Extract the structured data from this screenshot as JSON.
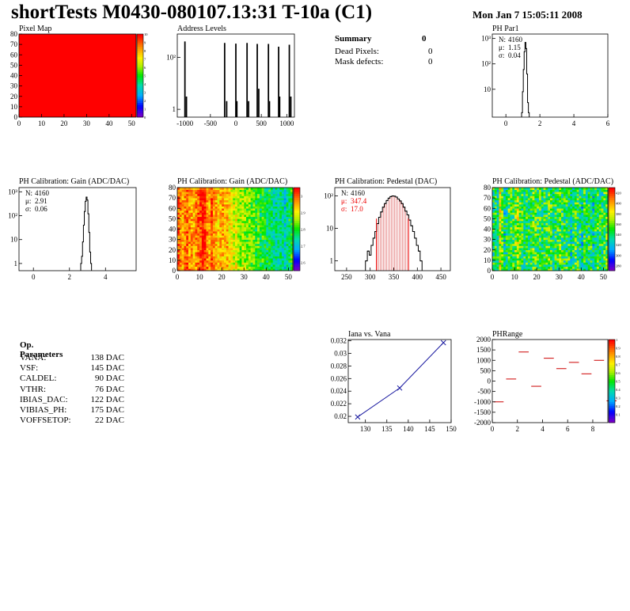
{
  "title": "shortTests M0430-080107.13:31 T-10a (C1)",
  "date": "Mon Jan  7 15:05:11 2008",
  "summary": {
    "heading": "Summary",
    "heading_value": "0",
    "rows": [
      {
        "label": "Dead Pixels:",
        "value": "0"
      },
      {
        "label": "Mask defects:",
        "value": "0"
      }
    ]
  },
  "op_params": {
    "heading": "Op. Parameters",
    "rows": [
      {
        "label": "VANA:",
        "value": "138 DAC"
      },
      {
        "label": "VSF:",
        "value": "145 DAC"
      },
      {
        "label": "CALDEL:",
        "value": "90 DAC"
      },
      {
        "label": "VTHR:",
        "value": "76 DAC"
      },
      {
        "label": "IBIAS_DAC:",
        "value": "122 DAC"
      },
      {
        "label": "VIBIAS_PH:",
        "value": "175 DAC"
      },
      {
        "label": "VOFFSETOP:",
        "value": "22 DAC"
      }
    ]
  },
  "chart_data": [
    {
      "id": "pixel-map",
      "type": "heatmap",
      "title": "Pixel Map",
      "xlim": [
        0,
        52
      ],
      "ylim": [
        0,
        80
      ],
      "xticks": [
        0,
        10,
        20,
        30,
        40,
        50
      ],
      "yticks": [
        0,
        10,
        20,
        30,
        40,
        50,
        60,
        70,
        80
      ],
      "zlim": [
        0,
        10
      ],
      "zticks": [
        0,
        1,
        2,
        3,
        4,
        5,
        6,
        7,
        8,
        9,
        10
      ],
      "uniform_value": 10
    },
    {
      "id": "address-levels",
      "type": "bar",
      "title": "Address Levels",
      "xlim": [
        -1150,
        1150
      ],
      "ylog": true,
      "ylim": [
        0.5,
        800
      ],
      "xticks": [
        -1000,
        -500,
        0,
        500,
        1000
      ],
      "yticks": [
        {
          "v": 1,
          "label": "1"
        },
        {
          "v": 100,
          "label": "10²"
        }
      ],
      "peaks": [
        {
          "x": -1000,
          "y": 400
        },
        {
          "x": -970,
          "y": 3
        },
        {
          "x": -220,
          "y": 350
        },
        {
          "x": -180,
          "y": 2
        },
        {
          "x": 0,
          "y": 330
        },
        {
          "x": 20,
          "y": 2
        },
        {
          "x": 220,
          "y": 350
        },
        {
          "x": 250,
          "y": 2
        },
        {
          "x": 420,
          "y": 320
        },
        {
          "x": 450,
          "y": 6
        },
        {
          "x": 640,
          "y": 320
        },
        {
          "x": 660,
          "y": 2
        },
        {
          "x": 840,
          "y": 250
        },
        {
          "x": 860,
          "y": 3
        },
        {
          "x": 1050,
          "y": 300
        },
        {
          "x": 1080,
          "y": 3
        }
      ]
    },
    {
      "id": "ph-par1",
      "type": "bar",
      "title": "PH Par1",
      "xlim": [
        -0.8,
        6
      ],
      "ylog": true,
      "ylim": [
        0.8,
        1500
      ],
      "xticks": [
        0,
        2,
        4,
        6
      ],
      "yticks": [
        {
          "v": 10,
          "label": "10"
        },
        {
          "v": 100,
          "label": "10²"
        },
        {
          "v": 1000,
          "label": "10³"
        }
      ],
      "stats": [
        {
          "k": "N:",
          "v": "4160"
        },
        {
          "k": "μ:",
          "v": "1.15"
        },
        {
          "k": "σ:",
          "v": "0.04"
        }
      ],
      "bins": [
        [
          0.95,
          1.2
        ],
        [
          1.0,
          8
        ],
        [
          1.05,
          60
        ],
        [
          1.1,
          300
        ],
        [
          1.15,
          700
        ],
        [
          1.2,
          400
        ],
        [
          1.25,
          40
        ],
        [
          1.3,
          3
        ],
        [
          1.35,
          1.2
        ]
      ]
    },
    {
      "id": "ph-gain-hist",
      "type": "bar",
      "title": "PH Calibration: Gain (ADC/DAC)",
      "xlim": [
        -0.8,
        5.7
      ],
      "ylog": true,
      "ylim": [
        0.5,
        1500
      ],
      "xticks": [
        0,
        2,
        4
      ],
      "yticks": [
        {
          "v": 1,
          "label": "1"
        },
        {
          "v": 10,
          "label": "10"
        },
        {
          "v": 100,
          "label": "10²"
        },
        {
          "v": 1000,
          "label": "10³"
        }
      ],
      "stats": [
        {
          "k": "N:",
          "v": "4160"
        },
        {
          "k": "μ:",
          "v": "2.91"
        },
        {
          "k": "σ:",
          "v": "0.06"
        }
      ],
      "bins": [
        [
          2.65,
          1
        ],
        [
          2.7,
          2
        ],
        [
          2.75,
          8
        ],
        [
          2.8,
          40
        ],
        [
          2.85,
          150
        ],
        [
          2.9,
          400
        ],
        [
          2.95,
          600
        ],
        [
          3.0,
          450
        ],
        [
          3.05,
          120
        ],
        [
          3.1,
          20
        ],
        [
          3.15,
          3
        ],
        [
          3.2,
          1
        ]
      ]
    },
    {
      "id": "ph-gain-map",
      "type": "heatmap",
      "title": "PH Calibration: Gain (ADC/DAC)",
      "xlim": [
        0,
        52
      ],
      "ylim": [
        0,
        80
      ],
      "xticks": [
        0,
        10,
        20,
        30,
        40,
        50
      ],
      "yticks": [
        0,
        10,
        20,
        30,
        40,
        50,
        60,
        70,
        80
      ],
      "zlim": [
        2.55,
        3.05
      ],
      "zticks": [
        2.6,
        2.7,
        2.8,
        2.9,
        3
      ],
      "column_means": [
        3.0,
        2.98,
        2.95,
        2.98,
        3.0,
        2.97,
        2.96,
        2.95,
        2.97,
        3.0,
        3.02,
        3.05,
        3.03,
        2.98,
        2.95,
        3.02,
        2.98,
        2.95,
        2.93,
        2.95,
        2.96,
        2.93,
        2.95,
        2.92,
        2.9,
        2.88,
        2.9,
        2.86,
        2.85,
        2.87,
        2.84,
        2.83,
        2.85,
        2.82,
        2.83,
        2.8,
        2.82,
        2.78,
        2.8,
        2.79,
        2.77,
        2.78,
        2.76,
        2.74,
        2.75,
        2.73,
        2.76,
        2.74,
        2.72,
        2.75,
        2.78,
        2.8
      ]
    },
    {
      "id": "ph-pedestal-hist",
      "type": "bar",
      "title": "PH Calibration: Pedestal (DAC)",
      "xlim": [
        225,
        470
      ],
      "ylog": true,
      "ylim": [
        0.5,
        180
      ],
      "xticks": [
        250,
        300,
        350,
        400,
        450
      ],
      "yticks": [
        {
          "v": 1,
          "label": "1"
        },
        {
          "v": 10,
          "label": "10"
        },
        {
          "v": 100,
          "label": "10²"
        }
      ],
      "stats": [
        {
          "k": "N:",
          "v": "4160"
        },
        {
          "k": "μ:",
          "v": "347.4"
        },
        {
          "k": "σ:",
          "v": "17.0"
        }
      ],
      "mean": 347.4,
      "sigma": 17.0,
      "band": [
        313.4,
        381.4
      ],
      "bins": [
        [
          292,
          1
        ],
        [
          296,
          2
        ],
        [
          300,
          1.5
        ],
        [
          304,
          3
        ],
        [
          308,
          5
        ],
        [
          312,
          8
        ],
        [
          316,
          14
        ],
        [
          320,
          22
        ],
        [
          324,
          32
        ],
        [
          328,
          45
        ],
        [
          332,
          58
        ],
        [
          336,
          72
        ],
        [
          340,
          85
        ],
        [
          344,
          95
        ],
        [
          348,
          100
        ],
        [
          352,
          98
        ],
        [
          356,
          92
        ],
        [
          360,
          80
        ],
        [
          364,
          70
        ],
        [
          368,
          58
        ],
        [
          372,
          45
        ],
        [
          376,
          34
        ],
        [
          380,
          26
        ],
        [
          384,
          18
        ],
        [
          388,
          12
        ],
        [
          392,
          8
        ],
        [
          396,
          5
        ],
        [
          400,
          3
        ],
        [
          404,
          2
        ],
        [
          408,
          1
        ]
      ]
    },
    {
      "id": "ph-pedestal-map",
      "type": "heatmap",
      "title": "PH Calibration: Pedestal (ADC/DAC)",
      "xlim": [
        0,
        52
      ],
      "ylim": [
        0,
        80
      ],
      "xticks": [
        0,
        10,
        20,
        30,
        40,
        50
      ],
      "yticks": [
        0,
        10,
        20,
        30,
        40,
        50,
        60,
        70,
        80
      ],
      "zlim": [
        270,
        430
      ],
      "zticks": [
        280,
        300,
        320,
        340,
        360,
        380,
        400,
        420
      ],
      "column_means": [
        340,
        345,
        335,
        380,
        360,
        330,
        340,
        355,
        350,
        345,
        360,
        370,
        355,
        345,
        340,
        350,
        340,
        345,
        355,
        350,
        345,
        350,
        340,
        345,
        350,
        355,
        350,
        340,
        345,
        350,
        355,
        345,
        340,
        350,
        345,
        335,
        340,
        350,
        345,
        340,
        330,
        345,
        335,
        340,
        345,
        330,
        340,
        350,
        345,
        340,
        350,
        355
      ]
    },
    {
      "id": "iana-vana",
      "type": "line",
      "title": "Iana vs. Vana",
      "xlim": [
        126,
        150
      ],
      "ylim": [
        0.019,
        0.0322
      ],
      "xticks": [
        130,
        135,
        140,
        145,
        150
      ],
      "yticks": [
        0.02,
        0.022,
        0.024,
        0.026,
        0.028,
        0.03,
        0.032
      ],
      "points": [
        [
          128.2,
          0.0199
        ],
        [
          138.0,
          0.0245
        ],
        [
          148.2,
          0.0317
        ]
      ]
    },
    {
      "id": "ph-range",
      "type": "scatter",
      "title": "PHRange",
      "xlim": [
        0,
        9.2
      ],
      "ylim": [
        -2000,
        2000
      ],
      "xticks": [
        0,
        2,
        4,
        6,
        8
      ],
      "yticks": [
        -2000,
        -1500,
        -1000,
        -500,
        0,
        500,
        1000,
        1500,
        2000
      ],
      "zlim": [
        0,
        1
      ],
      "zticks": [
        0.1,
        0.2,
        0.3,
        0.4,
        0.5,
        0.6,
        0.7,
        0.8,
        0.9,
        1
      ],
      "segments": [
        [
          0,
          -1000
        ],
        [
          1,
          100
        ],
        [
          2,
          1400
        ],
        [
          3,
          -250
        ],
        [
          4,
          1100
        ],
        [
          5,
          600
        ],
        [
          6,
          900
        ],
        [
          7,
          350
        ],
        [
          8,
          1000
        ],
        [
          9,
          -950
        ]
      ]
    }
  ]
}
